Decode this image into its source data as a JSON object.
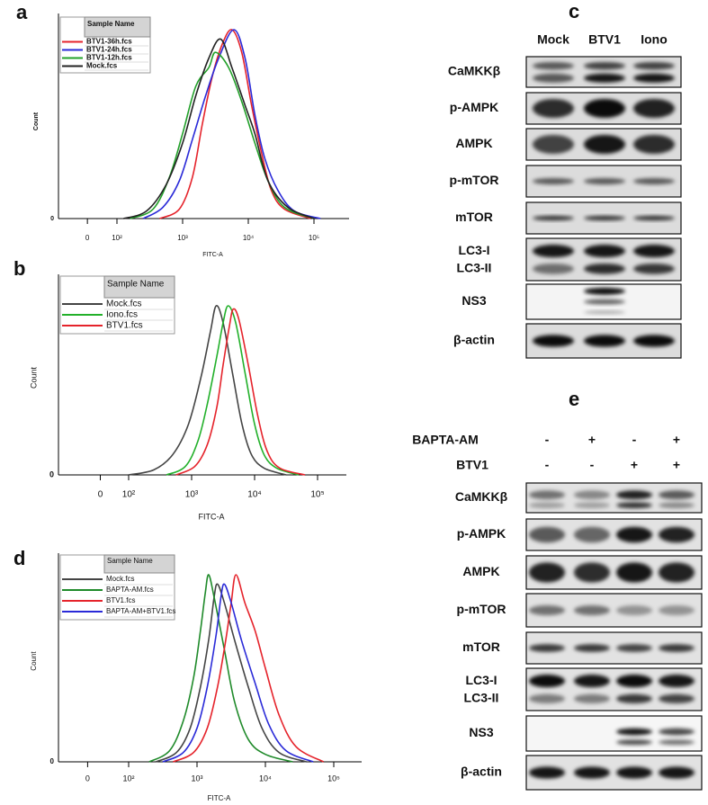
{
  "panel_a": {
    "label": "a",
    "y_label": "Count",
    "y_tick": "0",
    "x_label": "FITC-A",
    "legend_header": "Sample Name",
    "ylim": [
      0,
      100
    ],
    "x_ticks": [
      {
        "value": 1.55,
        "label": "0"
      },
      {
        "value": 2,
        "label": "10²"
      },
      {
        "value": 3,
        "label": "10³"
      },
      {
        "value": 4,
        "label": "10⁴"
      },
      {
        "value": 5,
        "label": "10⁵"
      }
    ],
    "series": [
      {
        "name": "BTV1-36h.fcs",
        "color": "#e5232b",
        "x": [
          2.65,
          2.95,
          3.15,
          3.3,
          3.45,
          3.6,
          3.75,
          3.9,
          4.05,
          4.2,
          4.35,
          4.55,
          4.95
        ],
        "values": [
          0,
          5,
          22,
          50,
          75,
          92,
          100,
          88,
          60,
          35,
          15,
          5,
          0
        ]
      },
      {
        "name": "BTV1-24h.fcs",
        "color": "#2a2ad8",
        "x": [
          2.4,
          2.7,
          2.95,
          3.15,
          3.35,
          3.55,
          3.78,
          3.95,
          4.1,
          4.25,
          4.45,
          4.7,
          5.1
        ],
        "values": [
          0,
          6,
          20,
          42,
          65,
          85,
          100,
          85,
          55,
          32,
          15,
          4,
          0
        ]
      },
      {
        "name": "BTV1-12h.fcs",
        "color": "#22a02a",
        "x": [
          2.2,
          2.55,
          2.8,
          3.0,
          3.2,
          3.4,
          3.5,
          3.7,
          3.9,
          4.1,
          4.3,
          4.55,
          5.0
        ],
        "values": [
          0,
          5,
          22,
          45,
          70,
          80,
          88,
          80,
          62,
          40,
          20,
          6,
          0
        ]
      },
      {
        "name": "Mock.fcs",
        "color": "#222222",
        "x": [
          2.1,
          2.45,
          2.75,
          3.0,
          3.2,
          3.4,
          3.58,
          3.75,
          3.95,
          4.1,
          4.3,
          4.6,
          5.0
        ],
        "values": [
          0,
          4,
          18,
          40,
          65,
          85,
          95,
          80,
          60,
          45,
          20,
          6,
          0
        ]
      }
    ]
  },
  "panel_b": {
    "label": "b",
    "y_label": "Count",
    "y_tick": "0",
    "x_label": "FITC-A",
    "legend_header": "Sample Name",
    "ylim": [
      0,
      100
    ],
    "x_ticks": [
      {
        "value": 1.55,
        "label": "0"
      },
      {
        "value": 2,
        "label": "10²"
      },
      {
        "value": 3,
        "label": "10³"
      },
      {
        "value": 4,
        "label": "10⁴"
      },
      {
        "value": 5,
        "label": "10⁵"
      }
    ],
    "series": [
      {
        "name": "Mock.fcs",
        "color": "#444444",
        "x": [
          2.0,
          2.4,
          2.7,
          2.95,
          3.15,
          3.3,
          3.39,
          3.5,
          3.65,
          3.8,
          3.95,
          4.15,
          4.5
        ],
        "values": [
          0,
          3,
          12,
          30,
          58,
          85,
          100,
          90,
          60,
          30,
          12,
          4,
          0
        ]
      },
      {
        "name": "Iono.fcs",
        "color": "#22b02a",
        "x": [
          2.6,
          2.9,
          3.1,
          3.25,
          3.4,
          3.5,
          3.58,
          3.7,
          3.85,
          4.0,
          4.15,
          4.35,
          4.7
        ],
        "values": [
          0,
          5,
          20,
          42,
          70,
          90,
          100,
          90,
          60,
          30,
          12,
          4,
          0
        ]
      },
      {
        "name": "BTV1.fcs",
        "color": "#e5232b",
        "x": [
          2.75,
          3.05,
          3.25,
          3.4,
          3.5,
          3.6,
          3.66,
          3.75,
          3.9,
          4.05,
          4.2,
          4.4,
          4.8
        ],
        "values": [
          0,
          5,
          18,
          40,
          65,
          88,
          98,
          92,
          65,
          35,
          14,
          4,
          0
        ]
      }
    ]
  },
  "panel_c": {
    "label": "c",
    "lanes": [
      "Mock",
      "BTV1",
      "Iono"
    ],
    "rows": [
      [
        "CaMKKβ"
      ],
      [
        "p-AMPK"
      ],
      [
        "AMPK"
      ],
      [
        "p-mTOR"
      ],
      [
        "mTOR"
      ],
      [
        "LC3-I",
        "LC3-II"
      ],
      [
        "NS3"
      ],
      [
        "β-actin"
      ]
    ]
  },
  "panel_d": {
    "label": "d",
    "y_label": "Count",
    "y_tick": "0",
    "x_label": "FITC-A",
    "legend_header": "Sample Name",
    "ylim": [
      0,
      100
    ],
    "x_ticks": [
      {
        "value": 1.4,
        "label": "0"
      },
      {
        "value": 2,
        "label": "10²"
      },
      {
        "value": 3,
        "label": "10³"
      },
      {
        "value": 4,
        "label": "10⁴"
      },
      {
        "value": 5,
        "label": "10⁵"
      }
    ],
    "series": [
      {
        "name": "Mock.fcs",
        "color": "#444444",
        "x": [
          2.4,
          2.7,
          2.9,
          3.05,
          3.17,
          3.25,
          3.3,
          3.4,
          3.55,
          3.75,
          3.95,
          4.2,
          4.6
        ],
        "values": [
          0,
          5,
          18,
          40,
          65,
          88,
          95,
          85,
          65,
          40,
          18,
          5,
          0
        ]
      },
      {
        "name": "BAPTA-AM.fcs",
        "color": "#1f8a2a",
        "x": [
          2.3,
          2.6,
          2.8,
          2.95,
          3.05,
          3.12,
          3.17,
          3.25,
          3.4,
          3.55,
          3.75,
          4.0,
          4.4
        ],
        "values": [
          0,
          6,
          22,
          45,
          70,
          90,
          100,
          88,
          60,
          32,
          12,
          4,
          0
        ]
      },
      {
        "name": "BTV1.fcs",
        "color": "#e5232b",
        "x": [
          2.65,
          2.95,
          3.15,
          3.3,
          3.42,
          3.5,
          3.57,
          3.7,
          3.85,
          4.0,
          4.2,
          4.45,
          4.85
        ],
        "values": [
          0,
          5,
          18,
          40,
          65,
          85,
          100,
          85,
          70,
          50,
          25,
          8,
          0
        ]
      },
      {
        "name": "BAPTA-AM+BTV1.fcs",
        "color": "#2a2ad8",
        "x": [
          2.5,
          2.8,
          3.0,
          3.15,
          3.28,
          3.35,
          3.4,
          3.5,
          3.65,
          3.85,
          4.05,
          4.3,
          4.7
        ],
        "values": [
          0,
          5,
          18,
          40,
          68,
          88,
          95,
          85,
          65,
          42,
          20,
          6,
          0
        ]
      }
    ]
  },
  "panel_e": {
    "label": "e",
    "treatments": [
      {
        "name": "BAPTA-AM",
        "signs": [
          "-",
          "+",
          "-",
          "+"
        ]
      },
      {
        "name": "BTV1",
        "signs": [
          "-",
          "-",
          "+",
          "+"
        ]
      }
    ],
    "rows": [
      [
        "CaMKKβ"
      ],
      [
        "p-AMPK"
      ],
      [
        "AMPK"
      ],
      [
        "p-mTOR"
      ],
      [
        "mTOR"
      ],
      [
        "LC3-I",
        "LC3-II"
      ],
      [
        "NS3"
      ],
      [
        "β-actin"
      ]
    ]
  }
}
